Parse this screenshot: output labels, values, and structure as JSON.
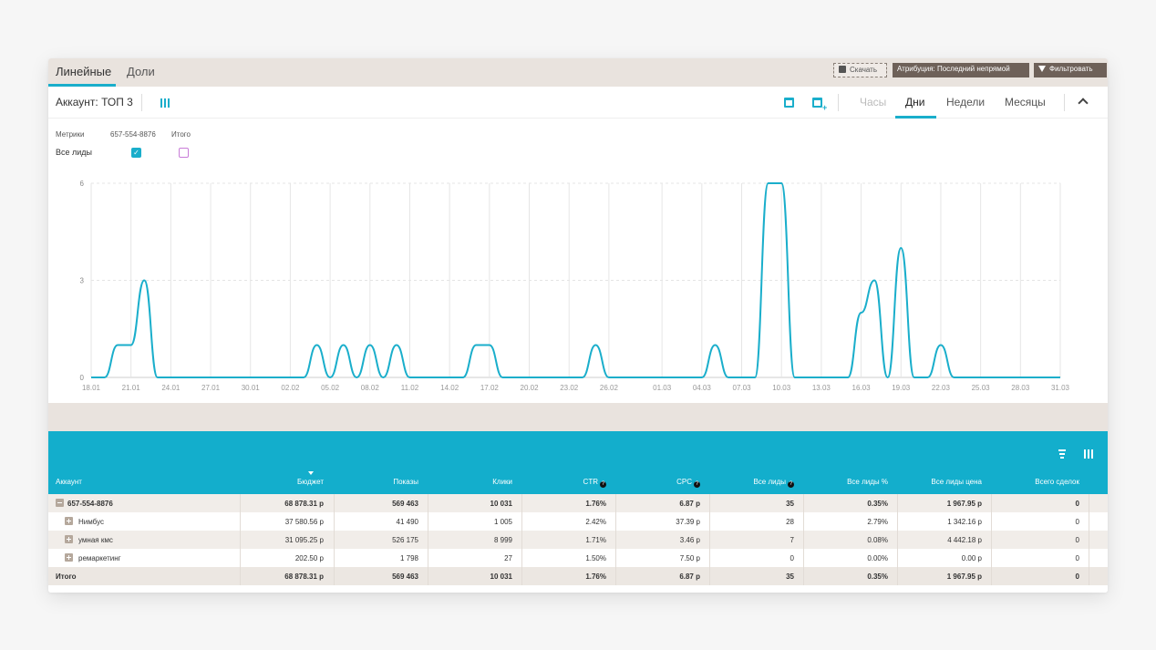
{
  "tabs": [
    {
      "label": "Линейные",
      "active": true
    },
    {
      "label": "Доли",
      "active": false
    }
  ],
  "toolbar": {
    "download_label": "Скачать",
    "attribution_label": "Атрибуция: Последний непрямой",
    "filter_label": "Фильтровать"
  },
  "account_title": "Аккаунт: ТОП 3",
  "periods": [
    {
      "label": "Часы",
      "state": "disabled"
    },
    {
      "label": "Дни",
      "state": "active"
    },
    {
      "label": "Недели",
      "state": "normal"
    },
    {
      "label": "Месяцы",
      "state": "normal"
    }
  ],
  "metrics": {
    "header_metrics": "Метрики",
    "header_account": "657-554-8876",
    "header_total": "Итого",
    "row_label": "Все лиды",
    "account_checked": true,
    "total_checked": false,
    "accent_color": "#1aaecb",
    "total_color": "#c87dd8"
  },
  "chart_data": {
    "type": "line",
    "x_ticks": [
      "18.01",
      "21.01",
      "24.01",
      "27.01",
      "30.01",
      "02.02",
      "05.02",
      "08.02",
      "11.02",
      "14.02",
      "17.02",
      "20.02",
      "23.02",
      "26.02",
      "01.03",
      "04.03",
      "07.03",
      "10.03",
      "13.03",
      "16.03",
      "19.03",
      "22.03",
      "25.03",
      "28.03",
      "31.03"
    ],
    "y_ticks": [
      0,
      3,
      6
    ],
    "ylim": [
      0,
      6
    ],
    "grid": true,
    "series": [
      {
        "color": "#1aaecb",
        "x": [
          "18.01",
          "19.01",
          "20.01",
          "21.01",
          "22.01",
          "23.01",
          "24.01",
          "02.02",
          "03.02",
          "04.02",
          "05.02",
          "06.02",
          "07.02",
          "08.02",
          "09.02",
          "10.02",
          "11.02",
          "12.02",
          "15.02",
          "16.02",
          "17.02",
          "18.02",
          "24.02",
          "25.02",
          "26.02",
          "04.03",
          "05.03",
          "06.03",
          "07.03",
          "08.03",
          "09.03",
          "10.03",
          "11.03",
          "12.03",
          "13.03",
          "14.03",
          "15.03",
          "16.03",
          "17.03",
          "18.03",
          "19.03",
          "20.03",
          "21.03",
          "22.03",
          "23.03",
          "31.03"
        ],
        "values": [
          0,
          0,
          1,
          1,
          3,
          0,
          0,
          0,
          0,
          1,
          0,
          1,
          0,
          1,
          0,
          1,
          0,
          0,
          0,
          1,
          1,
          0,
          0,
          1,
          0,
          0,
          1,
          0,
          0,
          0,
          6,
          6,
          0,
          0,
          0,
          0,
          0,
          2,
          3,
          0,
          4,
          0,
          0,
          1,
          0,
          0
        ]
      }
    ]
  },
  "table": {
    "columns": [
      "Аккаунт",
      "Бюджет",
      "Показы",
      "Клики",
      "CTR",
      "CPC",
      "Все лиды",
      "Все лиды %",
      "Все лиды цена",
      "Всего сделок"
    ],
    "help_columns": [
      4,
      5,
      6
    ],
    "sorted_column": 1,
    "rows": [
      {
        "kind": "account",
        "cells": [
          "657-554-8876",
          "68 878.31 р",
          "569 463",
          "10 031",
          "1.76%",
          "6.87 р",
          "35",
          "0.35%",
          "1 967.95 р",
          "0"
        ]
      },
      {
        "kind": "campaign",
        "cells": [
          "Нимбус",
          "37 580.56 р",
          "41 490",
          "1 005",
          "2.42%",
          "37.39 р",
          "28",
          "2.79%",
          "1 342.16 р",
          "0"
        ]
      },
      {
        "kind": "campaign",
        "cells": [
          "умная кмс",
          "31 095.25 р",
          "526 175",
          "8 999",
          "1.71%",
          "3.46 р",
          "7",
          "0.08%",
          "4 442.18 р",
          "0"
        ]
      },
      {
        "kind": "campaign",
        "cells": [
          "ремаркетинг",
          "202.50 р",
          "1 798",
          "27",
          "1.50%",
          "7.50 р",
          "0",
          "0.00%",
          "0.00 р",
          "0"
        ]
      },
      {
        "kind": "total",
        "cells": [
          "Итого",
          "68 878.31 р",
          "569 463",
          "10 031",
          "1.76%",
          "6.87 р",
          "35",
          "0.35%",
          "1 967.95 р",
          "0"
        ]
      }
    ]
  }
}
